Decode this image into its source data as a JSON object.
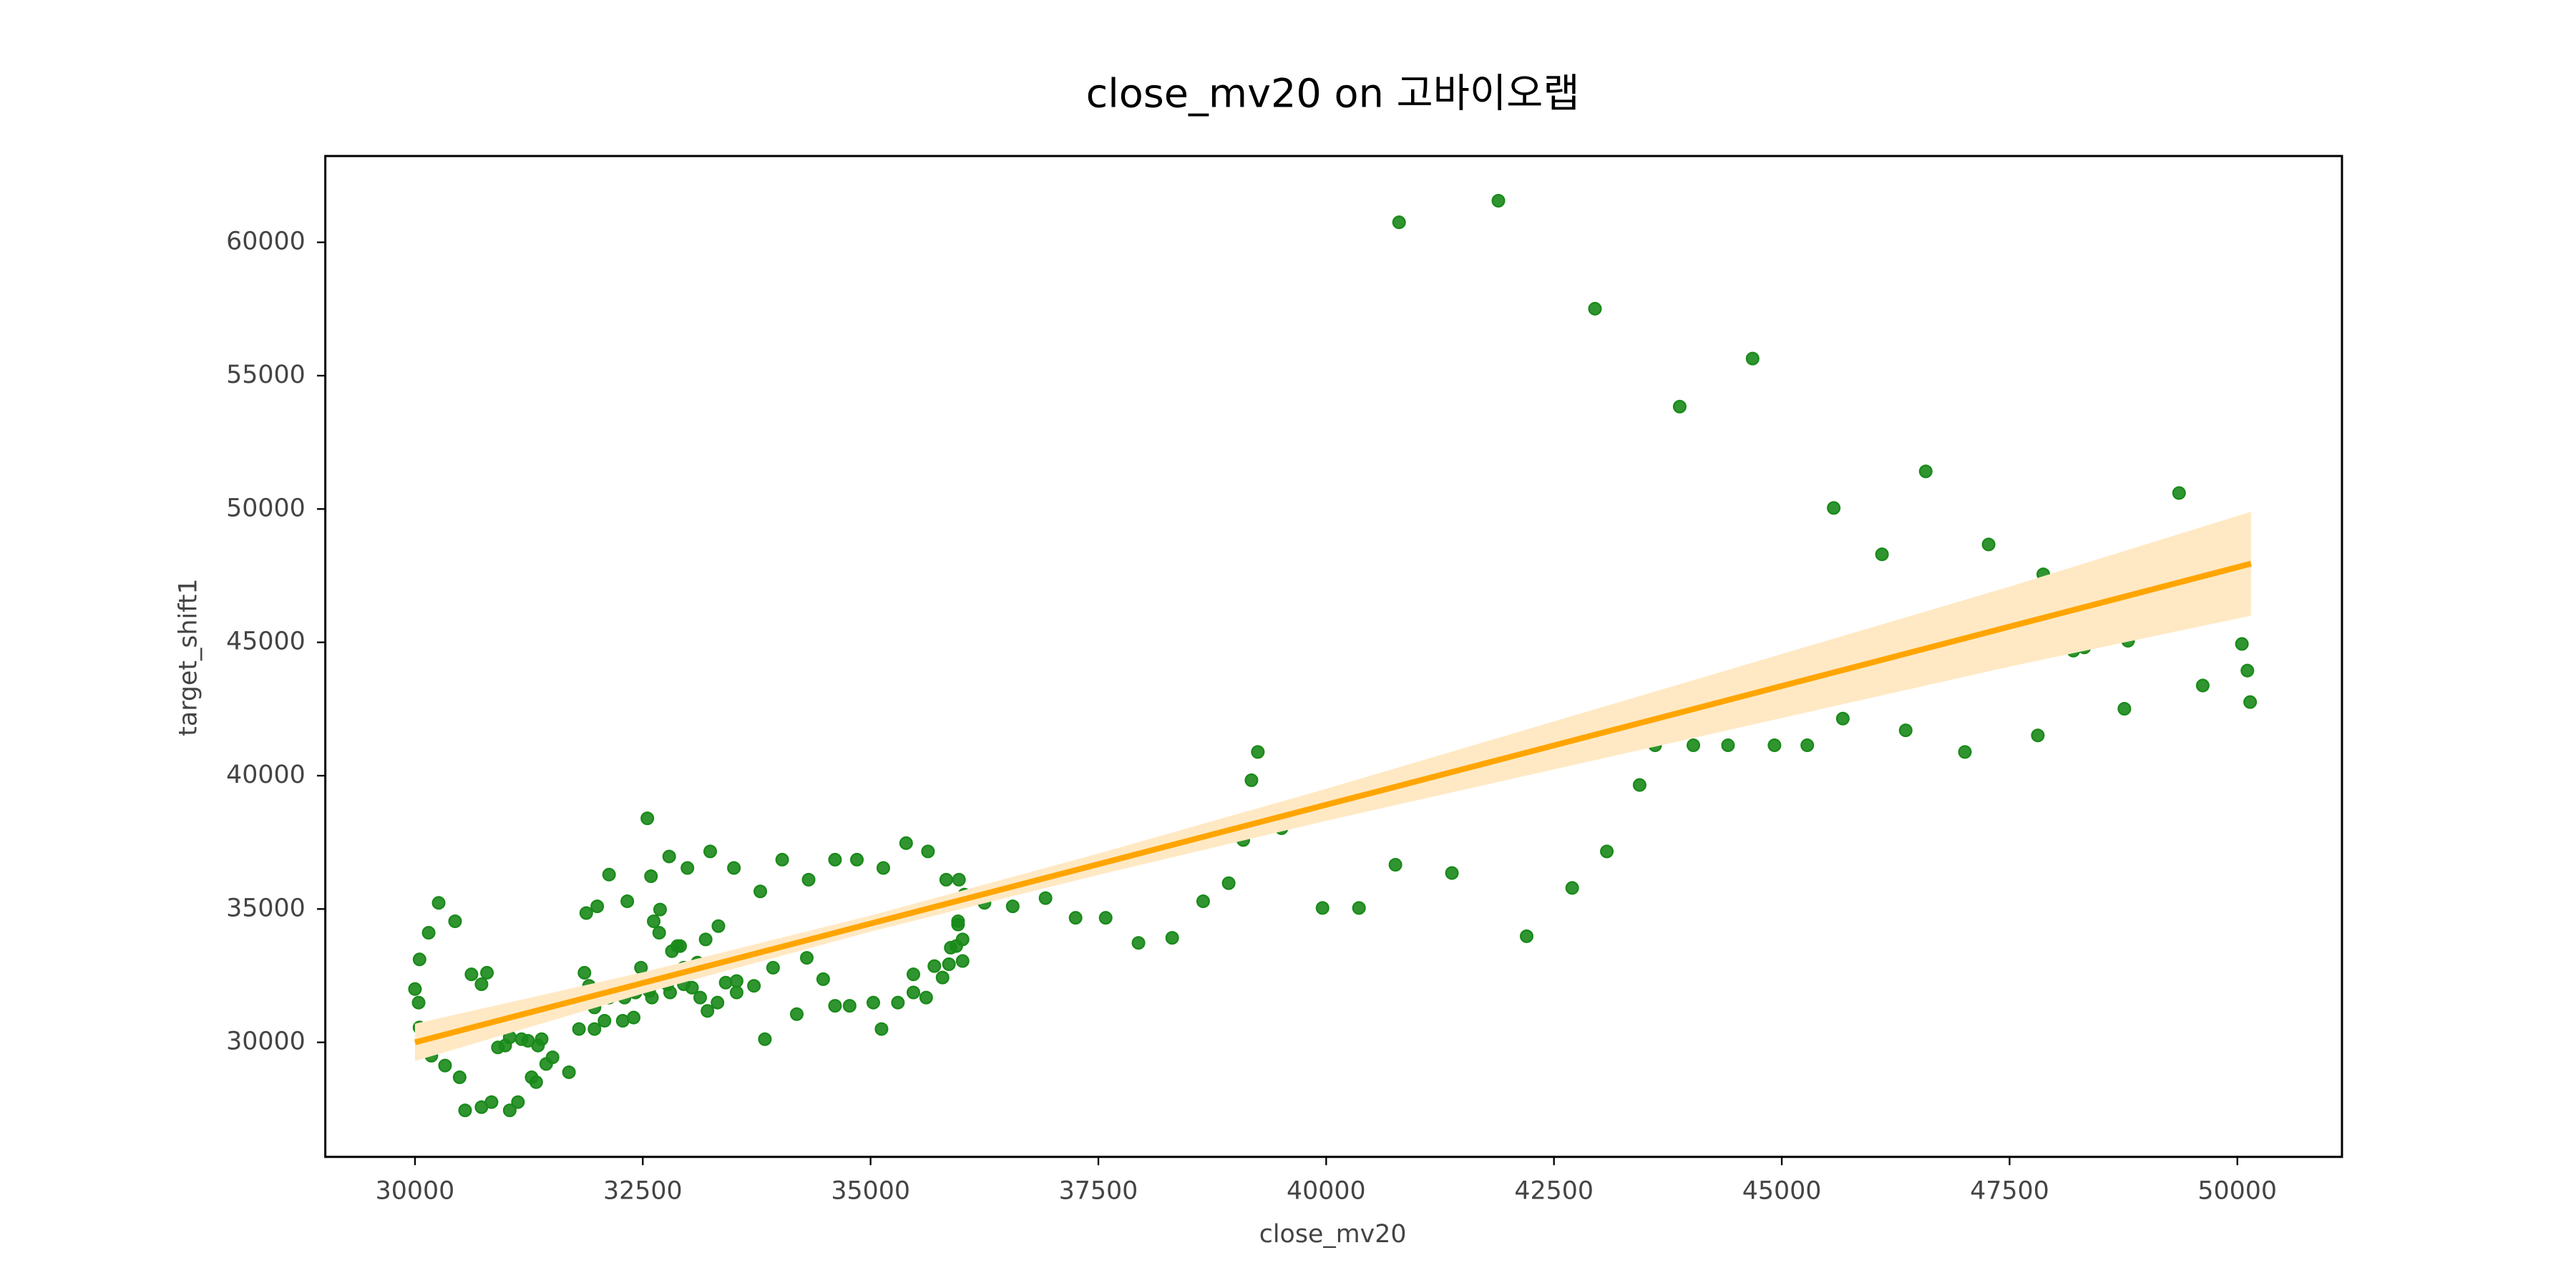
{
  "chart_data": {
    "type": "scatter",
    "title": "close_mv20 on 고바이오랩",
    "xlabel": "close_mv20",
    "ylabel": "target_shift1",
    "xlim": [
      29016,
      51148
    ],
    "ylim": [
      25706,
      63236
    ],
    "xticks": [
      30000,
      32500,
      35000,
      37500,
      40000,
      42500,
      45000,
      47500,
      50000
    ],
    "yticks": [
      30000,
      35000,
      40000,
      45000,
      50000,
      55000,
      60000
    ],
    "series": [
      {
        "color": "#1a8a1a",
        "x": [
          40800,
          41890,
          42950,
          44680,
          43880,
          45570,
          46580,
          46100,
          47270,
          47870,
          49360,
          49800,
          48430,
          49070,
          48800,
          48320,
          48200,
          50050,
          50110,
          49620,
          50140,
          48760,
          47810,
          47010,
          46360,
          45670,
          45280,
          44920,
          44410,
          44030,
          43610,
          43720,
          43440,
          43080,
          42700,
          42200,
          41380,
          40760,
          40360,
          39960,
          39510,
          39250,
          39180,
          39090,
          38930,
          38650,
          38310,
          37940,
          37580,
          37250,
          36920,
          36560,
          36250,
          36030,
          35970,
          35830,
          35630,
          35390,
          35140,
          34850,
          34610,
          34320,
          34030,
          33790,
          33500,
          33240,
          32990,
          32790,
          32550,
          32590,
          32330,
          32130,
          32000,
          31880,
          32620,
          32690,
          32680,
          32820,
          32910,
          33190,
          33330,
          32480,
          32570,
          32420,
          32300,
          32190,
          32040,
          31970,
          31910,
          31860,
          31800,
          31970,
          32080,
          32130,
          32280,
          32400,
          32600,
          32770,
          32800,
          32880,
          32950,
          32950,
          33040,
          33100,
          33130,
          33210,
          33320,
          33410,
          33530,
          33530,
          33720,
          33840,
          33930,
          34190,
          34300,
          34480,
          34610,
          34770,
          35030,
          35120,
          35300,
          35470,
          35470,
          35610,
          35700,
          35790,
          35860,
          35940,
          35960,
          36010,
          36010,
          35880,
          35960,
          30000,
          30040,
          30050,
          30050,
          30150,
          30260,
          30440,
          30180,
          30330,
          30490,
          30550,
          30620,
          30730,
          30790,
          30730,
          30840,
          30890,
          30910,
          30990,
          31040,
          31040,
          31130,
          31170,
          31240,
          31280,
          31330,
          31350,
          31390,
          31440,
          31510,
          31690
        ],
        "y": [
          60750,
          61560,
          57510,
          55640,
          53840,
          50040,
          51410,
          48300,
          48670,
          47550,
          50600,
          48550,
          46800,
          45620,
          45060,
          44810,
          44690,
          44940,
          43940,
          43380,
          42760,
          42510,
          41510,
          40890,
          41700,
          42140,
          41140,
          41140,
          41140,
          41140,
          41140,
          42950,
          39650,
          37160,
          35790,
          33980,
          36350,
          36660,
          35040,
          35040,
          38030,
          40890,
          39830,
          37590,
          35970,
          35290,
          33920,
          33730,
          34670,
          34670,
          35410,
          35100,
          35230,
          35540,
          36100,
          36100,
          37160,
          37470,
          36540,
          36850,
          36850,
          36100,
          36850,
          35660,
          36540,
          37160,
          36540,
          36970,
          38400,
          36230,
          35290,
          36290,
          35100,
          34850,
          34540,
          34980,
          34110,
          33420,
          33610,
          33860,
          34360,
          32800,
          31930,
          31870,
          31680,
          32000,
          31870,
          31310,
          32120,
          32610,
          30500,
          30500,
          30810,
          31680,
          30810,
          30930,
          31680,
          32180,
          31870,
          33610,
          32800,
          32180,
          32050,
          32990,
          31680,
          31180,
          31490,
          32240,
          32300,
          31870,
          32120,
          30120,
          32800,
          31060,
          33170,
          32370,
          31370,
          31370,
          31490,
          30500,
          31490,
          31870,
          32550,
          31680,
          32860,
          32430,
          32930,
          33610,
          34420,
          33860,
          33050,
          33550,
          34540,
          32000,
          31490,
          30560,
          33110,
          34110,
          35230,
          34540,
          29500,
          29130,
          28690,
          27450,
          32550,
          32180,
          32610,
          27570,
          27760,
          31120,
          29810,
          29880,
          30190,
          27450,
          27760,
          30120,
          30060,
          28690,
          28510,
          29880,
          30120,
          29190,
          29440,
          28880
        ]
      }
    ],
    "regression": {
      "color": "#ffa500",
      "band_color": "#ffe9c4",
      "x": [
        30000,
        32500,
        35000,
        37500,
        40000,
        42500,
        45000,
        47500,
        50150
      ],
      "y": [
        30000,
        32227,
        34454,
        36681,
        38908,
        41135,
        43362,
        45589,
        47950
      ],
      "ci_lower": [
        29300,
        31827,
        34154,
        36281,
        38308,
        40235,
        42162,
        44089,
        46000
      ],
      "ci_upper": [
        30700,
        32627,
        34754,
        37081,
        39508,
        42035,
        44562,
        47089,
        49900
      ]
    }
  }
}
